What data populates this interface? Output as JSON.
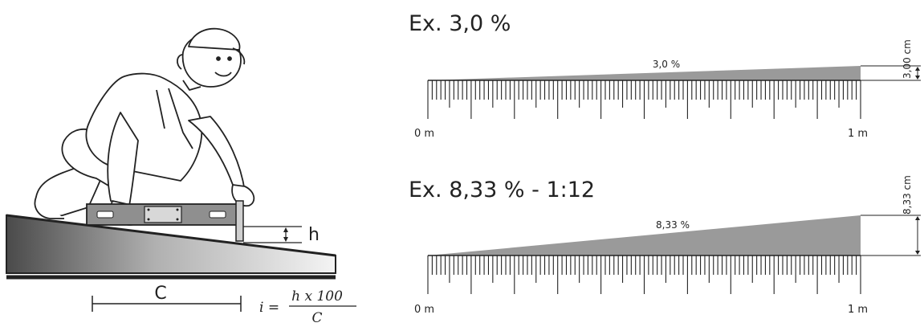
{
  "illustration": {
    "h_label": "h",
    "c_label": "C",
    "formula": {
      "lhs": "i =",
      "numerator": "h x 100",
      "denominator": "C"
    }
  },
  "examples": [
    {
      "title": "Ex. 3,0 %",
      "slope_percent": 3.0,
      "slope_label": "3,0 %",
      "rise_label": "3,00 cm",
      "start_label": "0 m",
      "end_label": "1 m"
    },
    {
      "title": "Ex. 8,33 % - 1:12",
      "slope_percent": 8.33,
      "slope_label": "8,33 %",
      "rise_label": "8,33 cm",
      "start_label": "0 m",
      "end_label": "1 m"
    }
  ],
  "colors": {
    "ink": "#222222",
    "wedge": "#9a9a9a",
    "ramp_dark": "#333333",
    "ramp_light": "#f2f2f2"
  }
}
